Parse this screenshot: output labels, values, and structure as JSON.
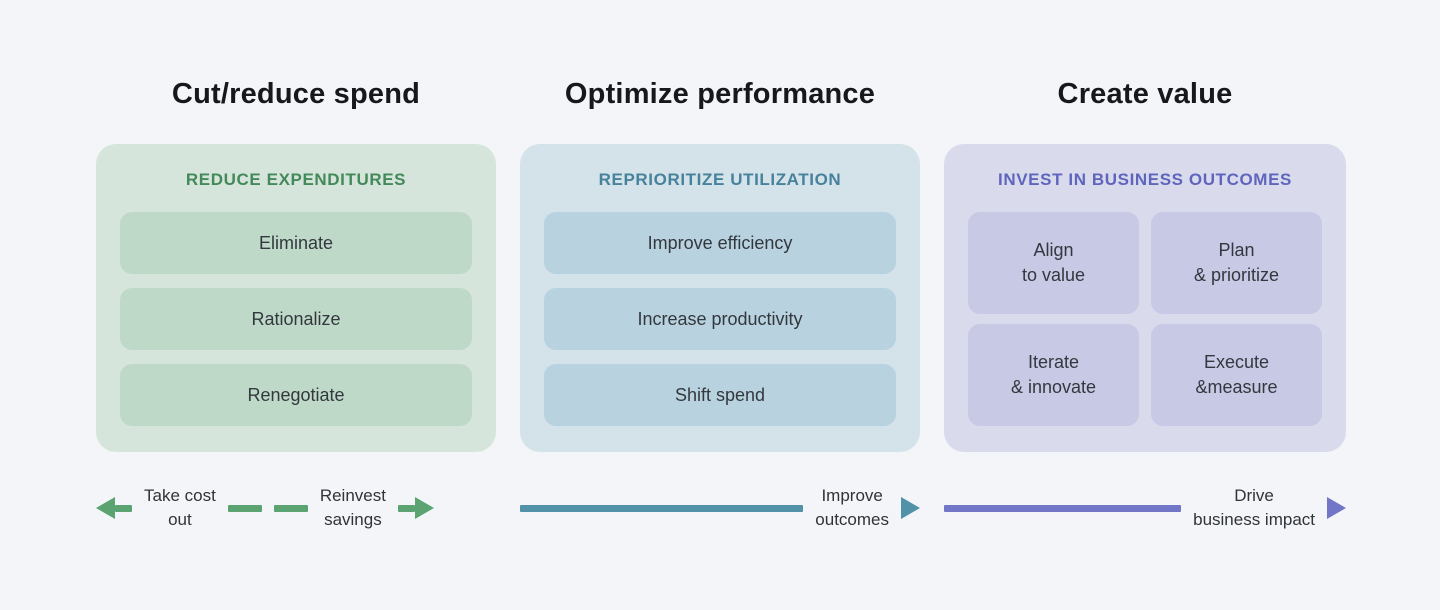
{
  "page": {
    "background_color": "#f4f5f8"
  },
  "columns": [
    {
      "id": "cut-reduce-spend",
      "title": "Cut/reduce spend",
      "panel_header": "REDUCE EXPENDITURES",
      "accent_color": "#5ba471",
      "header_text_color": "#44895a",
      "panel_bg_color": "#d6e5db",
      "item_bg_color": "#bed9c8",
      "items": [
        {
          "label": "Eliminate"
        },
        {
          "label": "Rationalize"
        },
        {
          "label": "Renegotiate"
        }
      ],
      "flow": {
        "left_label_line1": "Take cost",
        "left_label_line2": "out",
        "right_label_line1": "Reinvest",
        "right_label_line2": "savings",
        "left_arrow_direction": "left",
        "right_arrow_direction": "right"
      }
    },
    {
      "id": "optimize-performance",
      "title": "Optimize performance",
      "panel_header": "REPRIORITIZE UTILIZATION",
      "accent_color": "#5292a8",
      "header_text_color": "#47829c",
      "panel_bg_color": "#d4e2e9",
      "item_bg_color": "#b8d2df",
      "items": [
        {
          "label": "Improve efficiency"
        },
        {
          "label": "Increase productivity"
        },
        {
          "label": "Shift spend"
        }
      ],
      "flow": {
        "label_line1": "Improve",
        "label_line2": "outcomes",
        "arrow_direction": "right"
      }
    },
    {
      "id": "create-value",
      "title": "Create value",
      "panel_header": "INVEST IN BUSINESS OUTCOMES",
      "accent_color": "#7177c6",
      "header_text_color": "#5f65bd",
      "panel_bg_color": "#d9dbed",
      "item_bg_color": "#c7c9e5",
      "grid_items": [
        {
          "line1": "Align",
          "line2": "to value"
        },
        {
          "line1": "Plan",
          "line2": "& prioritize"
        },
        {
          "line1": "Iterate",
          "line2": "& innovate"
        },
        {
          "line1": "Execute",
          "line2": "&measure"
        }
      ],
      "flow": {
        "label_line1": "Drive",
        "label_line2": "business impact",
        "arrow_direction": "right"
      }
    }
  ]
}
